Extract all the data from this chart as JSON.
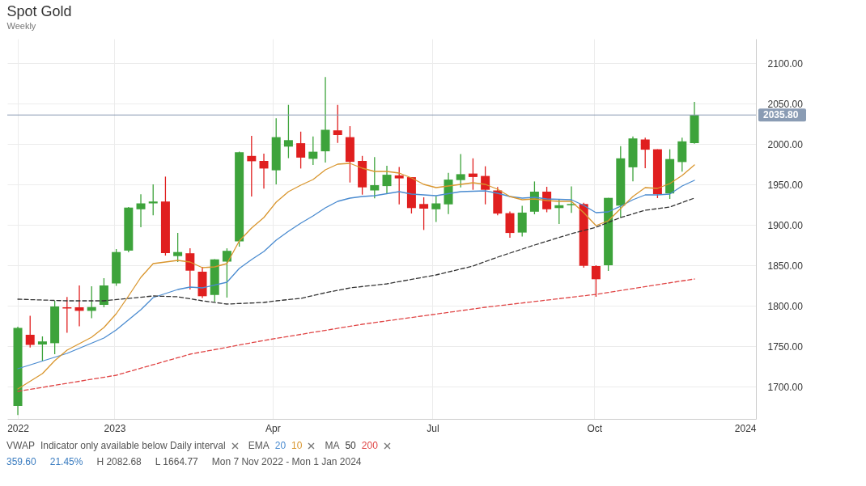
{
  "chart_data": {
    "type": "candlestick",
    "title": "Spot Gold",
    "subtitle": "Weekly",
    "x": [
      "2022-11-07",
      "2022-11-14",
      "2022-11-21",
      "2022-11-28",
      "2022-12-05",
      "2022-12-12",
      "2022-12-19",
      "2022-12-26",
      "2023-01-02",
      "2023-01-09",
      "2023-01-16",
      "2023-01-23",
      "2023-01-30",
      "2023-02-06",
      "2023-02-13",
      "2023-02-20",
      "2023-02-27",
      "2023-03-06",
      "2023-03-13",
      "2023-03-20",
      "2023-03-27",
      "2023-04-03",
      "2023-04-10",
      "2023-04-17",
      "2023-04-24",
      "2023-05-01",
      "2023-05-08",
      "2023-05-15",
      "2023-05-22",
      "2023-05-29",
      "2023-06-05",
      "2023-06-12",
      "2023-06-19",
      "2023-06-26",
      "2023-07-03",
      "2023-07-10",
      "2023-07-17",
      "2023-07-24",
      "2023-07-31",
      "2023-08-07",
      "2023-08-14",
      "2023-08-21",
      "2023-08-28",
      "2023-09-04",
      "2023-09-11",
      "2023-09-18",
      "2023-09-25",
      "2023-10-02",
      "2023-10-09",
      "2023-10-16",
      "2023-10-23",
      "2023-10-30",
      "2023-11-06",
      "2023-11-13",
      "2023-11-20",
      "2023-11-27"
    ],
    "ohlc": [
      [
        1676,
        1774,
        1664.77,
        1772.6
      ],
      [
        1764,
        1787.6,
        1748.3,
        1751.5
      ],
      [
        1752,
        1762,
        1732,
        1755.8
      ],
      [
        1753.6,
        1806,
        1740,
        1799
      ],
      [
        1798,
        1810.7,
        1766.6,
        1796.5
      ],
      [
        1798,
        1825,
        1774.6,
        1793.6
      ],
      [
        1793.6,
        1824,
        1784.6,
        1798.3
      ],
      [
        1801,
        1834,
        1798,
        1825
      ],
      [
        1827.5,
        1870,
        1824.5,
        1866.3
      ],
      [
        1868.1,
        1922,
        1866,
        1921.3
      ],
      [
        1919.2,
        1937.8,
        1897,
        1926.5
      ],
      [
        1926.5,
        1950,
        1911.7,
        1928.8
      ],
      [
        1928.8,
        1959.6,
        1862,
        1865
      ],
      [
        1861.3,
        1890,
        1854,
        1866.3
      ],
      [
        1864.8,
        1870.9,
        1820,
        1843.3
      ],
      [
        1842,
        1848,
        1809.4,
        1811.7
      ],
      [
        1813.2,
        1857.5,
        1805,
        1857.3
      ],
      [
        1854.5,
        1870.9,
        1810,
        1867.8
      ],
      [
        1879.4,
        1990.5,
        1873,
        1989.7
      ],
      [
        1985.2,
        2010,
        1935,
        1978.6
      ],
      [
        1979,
        1988,
        1944.8,
        1969.6
      ],
      [
        1967.4,
        2031.8,
        1950,
        2008.4
      ],
      [
        1996.7,
        2048.3,
        1982.4,
        2004.7
      ],
      [
        2000.9,
        2015.2,
        1969.6,
        1983.1
      ],
      [
        1981.6,
        2009.2,
        1974,
        1990.4
      ],
      [
        1990.9,
        2082.68,
        1977.1,
        2017.5
      ],
      [
        2016.8,
        2048.3,
        2001.2,
        2011
      ],
      [
        2008.4,
        2022,
        1952.3,
        1977.9
      ],
      [
        1979,
        1985.2,
        1937.3,
        1946.3
      ],
      [
        1942.5,
        1983.7,
        1932.8,
        1949
      ],
      [
        1947.9,
        1973.1,
        1938.4,
        1961.9
      ],
      [
        1961.1,
        1971.6,
        1925.3,
        1957.4
      ],
      [
        1958.9,
        1959,
        1914,
        1920.7
      ],
      [
        1925.7,
        1934,
        1893.6,
        1920
      ],
      [
        1919.2,
        1935.5,
        1903.4,
        1926.5
      ],
      [
        1925.3,
        1964.2,
        1913.2,
        1955.9
      ],
      [
        1955.3,
        1987.4,
        1946.3,
        1962.6
      ],
      [
        1963.4,
        1982.2,
        1943.3,
        1959.1
      ],
      [
        1960.4,
        1972.4,
        1925.3,
        1943.3
      ],
      [
        1942.5,
        1946.8,
        1911.7,
        1913.9
      ],
      [
        1914.4,
        1916.6,
        1884,
        1889.9
      ],
      [
        1890.4,
        1923.5,
        1885.4,
        1915.1
      ],
      [
        1916.2,
        1953.6,
        1913,
        1941
      ],
      [
        1941,
        1947,
        1915.5,
        1919.2
      ],
      [
        1920.7,
        1931,
        1901,
        1924.2
      ],
      [
        1924.2,
        1947.6,
        1914.7,
        1925.7
      ],
      [
        1925.7,
        1927.3,
        1847,
        1849.3
      ],
      [
        1849,
        1850,
        1811,
        1832.7
      ],
      [
        1850,
        1933.3,
        1843,
        1933.3
      ],
      [
        1923.7,
        1997.2,
        1908.7,
        1982.2
      ],
      [
        1971.1,
        2009.2,
        1953.8,
        2006.8
      ],
      [
        2005.5,
        2007.7,
        1970,
        1992.9
      ],
      [
        1993.4,
        1993.4,
        1933,
        1937.8
      ],
      [
        1938.8,
        1993.4,
        1932,
        1981.3
      ],
      [
        1977.6,
        2007.7,
        1965.8,
        2003.2
      ],
      [
        2001,
        2052.1,
        2000.2,
        2035.8
      ]
    ],
    "colors": [
      "#3da33b",
      "#e01f1f",
      "#3da33b",
      "#3da33b",
      "#e01f1f",
      "#e01f1f",
      "#3da33b",
      "#3da33b",
      "#3da33b",
      "#3da33b",
      "#3da33b",
      "#3da33b",
      "#e01f1f",
      "#3da33b",
      "#e01f1f",
      "#e01f1f",
      "#3da33b",
      "#3da33b",
      "#3da33b",
      "#e01f1f",
      "#e01f1f",
      "#3da33b",
      "#3da33b",
      "#e01f1f",
      "#3da33b",
      "#3da33b",
      "#e01f1f",
      "#e01f1f",
      "#e01f1f",
      "#3da33b",
      "#3da33b",
      "#e01f1f",
      "#e01f1f",
      "#e01f1f",
      "#3da33b",
      "#3da33b",
      "#3da33b",
      "#e01f1f",
      "#e01f1f",
      "#e01f1f",
      "#e01f1f",
      "#3da33b",
      "#3da33b",
      "#e01f1f",
      "#3da33b",
      "#3da33b",
      "#e01f1f",
      "#e01f1f",
      "#3da33b",
      "#3da33b",
      "#3da33b",
      "#e01f1f",
      "#e01f1f",
      "#3da33b",
      "#3da33b",
      "#3da33b"
    ],
    "series": [
      {
        "name": "20",
        "type": "line",
        "color": "#4a8bd0",
        "line_style": "solid",
        "x": [
          "2022-11-07",
          "2022-12-05",
          "2022-12-26",
          "2023-01-02",
          "2023-01-16",
          "2023-01-23",
          "2023-02-06",
          "2023-02-13",
          "2023-02-20",
          "2023-03-06",
          "2023-03-13",
          "2023-03-20",
          "2023-03-27",
          "2023-04-03",
          "2023-04-10",
          "2023-04-17",
          "2023-04-24",
          "2023-05-01",
          "2023-05-08",
          "2023-05-15",
          "2023-05-22",
          "2023-05-29",
          "2023-06-12",
          "2023-06-19",
          "2023-07-03",
          "2023-07-17",
          "2023-07-31",
          "2023-08-07",
          "2023-08-14",
          "2023-08-21",
          "2023-08-28",
          "2023-09-04",
          "2023-09-18",
          "2023-09-25",
          "2023-10-02",
          "2023-10-09",
          "2023-10-16",
          "2023-10-23",
          "2023-10-30",
          "2023-11-06",
          "2023-11-13",
          "2023-11-20",
          "2023-11-27"
        ],
        "values": [
          1722,
          1741,
          1760,
          1770,
          1795,
          1810,
          1820,
          1823,
          1822,
          1829,
          1846,
          1857,
          1867,
          1881,
          1892,
          1902,
          1911,
          1921,
          1929,
          1933,
          1935,
          1936,
          1941,
          1938,
          1936,
          1941,
          1942,
          1939,
          1935,
          1933,
          1934,
          1932,
          1931,
          1924,
          1915,
          1916,
          1923,
          1931,
          1937,
          1937,
          1938,
          1948,
          1955
        ]
      },
      {
        "name": "10",
        "type": "line",
        "color": "#d9962e",
        "line_style": "solid",
        "x": [
          "2022-11-07",
          "2022-11-21",
          "2022-11-28",
          "2022-12-05",
          "2022-12-19",
          "2022-12-26",
          "2023-01-02",
          "2023-01-09",
          "2023-01-16",
          "2023-01-23",
          "2023-02-06",
          "2023-02-13",
          "2023-02-20",
          "2023-02-27",
          "2023-03-06",
          "2023-03-13",
          "2023-03-20",
          "2023-03-27",
          "2023-04-03",
          "2023-04-10",
          "2023-04-17",
          "2023-04-24",
          "2023-05-01",
          "2023-05-08",
          "2023-05-15",
          "2023-05-22",
          "2023-05-29",
          "2023-06-05",
          "2023-06-12",
          "2023-06-19",
          "2023-06-26",
          "2023-07-03",
          "2023-07-10",
          "2023-07-17",
          "2023-07-24",
          "2023-07-31",
          "2023-08-07",
          "2023-08-14",
          "2023-08-21",
          "2023-08-28",
          "2023-09-04",
          "2023-09-11",
          "2023-09-18",
          "2023-09-25",
          "2023-10-02",
          "2023-10-09",
          "2023-10-16",
          "2023-10-23",
          "2023-10-30",
          "2023-11-06",
          "2023-11-13",
          "2023-11-20",
          "2023-11-27"
        ],
        "values": [
          1697,
          1716,
          1732,
          1745,
          1761,
          1773,
          1790,
          1812,
          1835,
          1852,
          1856,
          1854,
          1847,
          1848,
          1852,
          1880,
          1896,
          1909,
          1928,
          1941,
          1949,
          1956,
          1968,
          1975,
          1976,
          1970,
          1966,
          1966,
          1964,
          1958,
          1950,
          1946,
          1948,
          1950,
          1952,
          1950,
          1944,
          1935,
          1931,
          1932,
          1930,
          1929,
          1929,
          1915,
          1899,
          1905,
          1920,
          1935,
          1946,
          1945,
          1951,
          1961,
          1974
        ]
      },
      {
        "name": "50",
        "type": "line",
        "color": "#333333",
        "line_style": "dashed",
        "x": [
          "2022-11-07",
          "2022-12-05",
          "2022-12-26",
          "2023-01-23",
          "2023-02-06",
          "2023-02-20",
          "2023-03-06",
          "2023-03-27",
          "2023-04-03",
          "2023-04-17",
          "2023-05-01",
          "2023-05-15",
          "2023-06-05",
          "2023-07-03",
          "2023-07-24",
          "2023-08-07",
          "2023-08-28",
          "2023-09-18",
          "2023-10-02",
          "2023-10-16",
          "2023-10-30",
          "2023-11-13",
          "2023-11-27"
        ],
        "values": [
          1808,
          1806,
          1806,
          1812,
          1811,
          1806,
          1802,
          1804,
          1806,
          1809,
          1816,
          1822,
          1827,
          1838,
          1849,
          1860,
          1875,
          1889,
          1897,
          1909,
          1918,
          1922,
          1933
        ]
      },
      {
        "name": "200",
        "type": "line",
        "color": "#e04545",
        "line_style": "dashed",
        "x": [
          "2022-11-07",
          "2023-01-02",
          "2023-02-13",
          "2023-03-27",
          "2023-05-22",
          "2023-07-31",
          "2023-10-02",
          "2023-11-27"
        ],
        "values": [
          1694,
          1714,
          1740,
          1757,
          1777,
          1798,
          1814,
          1833
        ]
      }
    ],
    "ref_lines": [
      {
        "axis": "y",
        "value": 2035.8,
        "label": "2035.80",
        "color": "#8a9cb4"
      }
    ],
    "annotations": [
      "VWAP",
      "Indicator only available below Daily interval",
      "EMA",
      "MA",
      "359.60",
      "21.45%",
      "H 2082.68",
      "L 1664.77",
      "Mon 7 Nov 2022 - Mon 1 Jan 2024"
    ],
    "xlim": [
      "2022-11-01",
      "2024-01-01"
    ],
    "xticks": [
      {
        "value": "2022-11-07",
        "label": "2022"
      },
      {
        "value": "2023-01-01",
        "label": "2023"
      },
      {
        "value": "2023-04-01",
        "label": "Apr"
      },
      {
        "value": "2023-07-01",
        "label": "Jul"
      },
      {
        "value": "2023-10-01",
        "label": "Oct"
      },
      {
        "value": "2024-01-01",
        "label": "2024"
      }
    ],
    "ylim": [
      1660,
      2130
    ],
    "yticks": [
      {
        "value": 1700,
        "label": "1700.00"
      },
      {
        "value": 1750,
        "label": "1750.00"
      },
      {
        "value": 1800,
        "label": "1800.00"
      },
      {
        "value": 1850,
        "label": "1850.00"
      },
      {
        "value": 1900,
        "label": "1900.00"
      },
      {
        "value": 1950,
        "label": "1950.00"
      },
      {
        "value": 2000,
        "label": "2000.00"
      },
      {
        "value": 2050,
        "label": "2050.00"
      },
      {
        "value": 2100,
        "label": "2100.00"
      }
    ],
    "grid": true,
    "legend": "bottom"
  }
}
